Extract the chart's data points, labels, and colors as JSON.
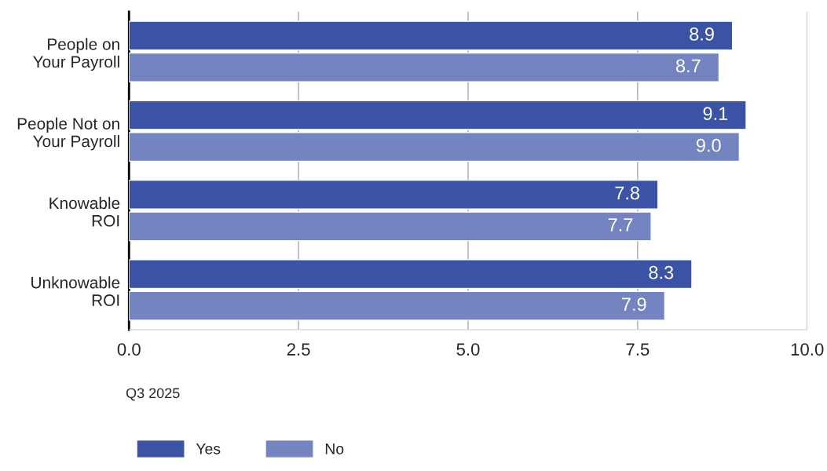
{
  "chart_data": {
    "type": "bar",
    "orientation": "horizontal",
    "categories": [
      "People on\nYour Payroll",
      "People Not on\nYour Payroll",
      "Knowable\nROI",
      "Unknowable\nROI"
    ],
    "series": [
      {
        "name": "Yes",
        "color": "#3a53a4",
        "values": [
          8.9,
          9.1,
          7.8,
          8.3
        ],
        "value_labels": [
          "8.9",
          "9.1",
          "7.8",
          "8.3"
        ]
      },
      {
        "name": "No",
        "color": "#7384c0",
        "values": [
          8.7,
          9.0,
          7.7,
          7.9
        ],
        "value_labels": [
          "8.7",
          "9.0",
          "7.7",
          "7.9"
        ]
      }
    ],
    "xlim": [
      0,
      10
    ],
    "xticks": [
      {
        "value": 0,
        "label": "0.0"
      },
      {
        "value": 2.5,
        "label": "2.5"
      },
      {
        "value": 5,
        "label": "5.0"
      },
      {
        "value": 7.5,
        "label": "7.5"
      },
      {
        "value": 10,
        "label": "10.0"
      }
    ],
    "grid": "x",
    "legend": "bottom left",
    "annotations": [
      "Q3 2025"
    ]
  }
}
